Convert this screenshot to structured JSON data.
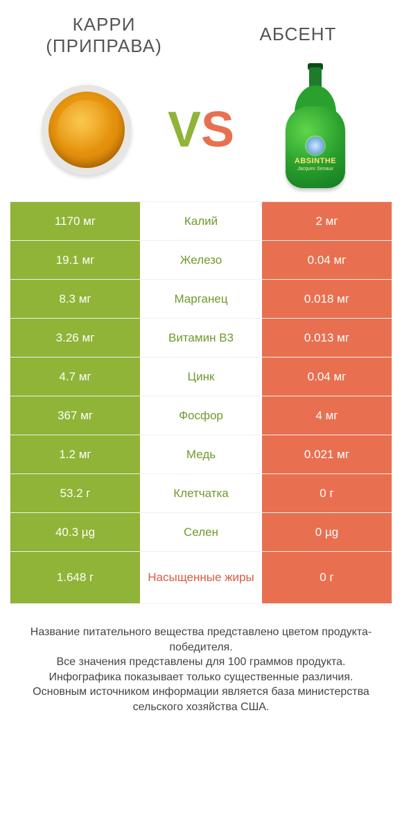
{
  "colors": {
    "green": "#8fb437",
    "orange": "#e87050",
    "label_green": "#6f9a2d",
    "label_orange": "#d85b3f",
    "white": "#ffffff",
    "row_border": "#efefef",
    "text_dark": "#555555"
  },
  "header": {
    "left_title_line1": "КАРРИ",
    "left_title_line2": "(ПРИПРАВА)",
    "right_title": "АБСЕНТ"
  },
  "vs": {
    "v": "V",
    "s": "S"
  },
  "bottle": {
    "brand": "ABSINTHE",
    "sub": "Jacques Senaux"
  },
  "rows": [
    {
      "left": "1170 мг",
      "label": "Калий",
      "right": "2 мг",
      "winner": "left",
      "tall": false
    },
    {
      "left": "19.1 мг",
      "label": "Железо",
      "right": "0.04 мг",
      "winner": "left",
      "tall": false
    },
    {
      "left": "8.3 мг",
      "label": "Марганец",
      "right": "0.018 мг",
      "winner": "left",
      "tall": false
    },
    {
      "left": "3.26 мг",
      "label": "Витамин B3",
      "right": "0.013 мг",
      "winner": "left",
      "tall": false
    },
    {
      "left": "4.7 мг",
      "label": "Цинк",
      "right": "0.04 мг",
      "winner": "left",
      "tall": false
    },
    {
      "left": "367 мг",
      "label": "Фосфор",
      "right": "4 мг",
      "winner": "left",
      "tall": false
    },
    {
      "left": "1.2 мг",
      "label": "Медь",
      "right": "0.021 мг",
      "winner": "left",
      "tall": false
    },
    {
      "left": "53.2 г",
      "label": "Клетчатка",
      "right": "0 г",
      "winner": "left",
      "tall": false
    },
    {
      "left": "40.3 µg",
      "label": "Селен",
      "right": "0 µg",
      "winner": "left",
      "tall": false
    },
    {
      "left": "1.648 г",
      "label": "Насыщенные жиры",
      "right": "0 г",
      "winner": "right",
      "tall": true
    }
  ],
  "footnote": {
    "l1": "Название питательного вещества представлено цветом продукта-победителя.",
    "l2": "Все значения представлены для 100 граммов продукта.",
    "l3": "Инфографика показывает только существенные различия.",
    "l4": "Основным источником информации является база министерства сельского хозяйства США."
  },
  "fontsize": {
    "title": 26,
    "vs": 72,
    "cell": 17,
    "footnote": 16
  }
}
